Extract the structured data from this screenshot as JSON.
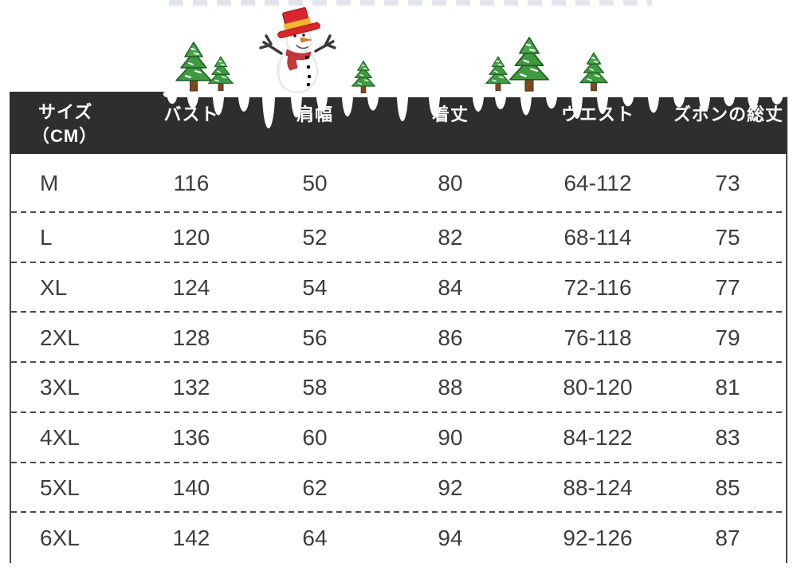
{
  "chart_data": {
    "type": "table",
    "title": "",
    "columns": [
      "サイズ（CM）",
      "バスト",
      "肩幅",
      "着丈",
      "ウエスト",
      "ズボンの総丈"
    ],
    "rows": [
      [
        "M",
        "116",
        "50",
        "80",
        "64-112",
        "73"
      ],
      [
        "L",
        "120",
        "52",
        "82",
        "68-114",
        "75"
      ],
      [
        "XL",
        "124",
        "54",
        "84",
        "72-116",
        "77"
      ],
      [
        "2XL",
        "128",
        "56",
        "86",
        "76-118",
        "79"
      ],
      [
        "3XL",
        "132",
        "58",
        "88",
        "80-120",
        "81"
      ],
      [
        "4XL",
        "136",
        "60",
        "90",
        "84-122",
        "83"
      ],
      [
        "5XL",
        "140",
        "62",
        "92",
        "88-124",
        "85"
      ],
      [
        "6XL",
        "142",
        "64",
        "94",
        "92-126",
        "87"
      ]
    ],
    "layout": {
      "header_row": true,
      "row_dividers": "dashed",
      "grid": "partial"
    }
  },
  "header_display": {
    "size_line1": "サイズ",
    "size_line2": "（CM）"
  },
  "decoration": {
    "items": [
      "snowman",
      "pine-trees",
      "snow-with-icicles"
    ],
    "tree_count": 6
  },
  "colors": {
    "header_bg": "#2e2e2e",
    "header_text": "#ffffff",
    "body_text": "#3d3d3d",
    "divider": "#4a4a4a",
    "tree_green": "#3f9b41",
    "tree_outline": "#1d5a20",
    "trunk_brown": "#7b4a21",
    "hat_red": "#d8262b",
    "hat_band_yellow": "#f5b52e",
    "scarf_red": "#c9373b",
    "nose_orange": "#e07b28",
    "snow_white": "#ffffff"
  }
}
